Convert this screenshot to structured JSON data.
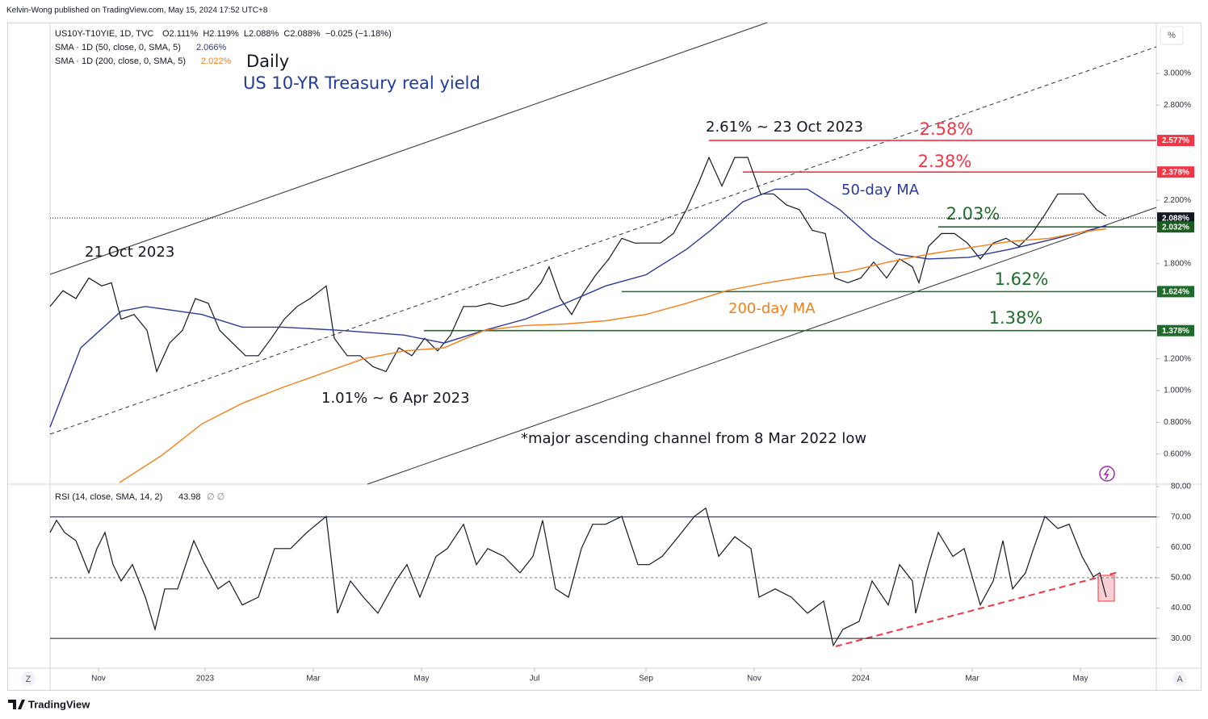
{
  "header": "Kelvin-Wong published on TradingView.com, May 15, 2024 17:52 UTC+8",
  "footer": "TradingView",
  "controls": {
    "scale_mode": "%",
    "zoom": "Z",
    "auto": "A"
  },
  "chart_data": [
    {
      "type": "line",
      "title": "Daily",
      "subtitle": "US 10-YR Treasury real yield",
      "ohlc_text": "O2.111%  H2.119%  L2.088%  C2.088%  −0.025 (−1.18%)",
      "xlim": [
        0,
        685
      ],
      "ylim": [
        0.41,
        3.32
      ],
      "grid": false,
      "yticks": [
        {
          "value": 0.6,
          "label": "0.600%"
        },
        {
          "value": 0.8,
          "label": "0.800%"
        },
        {
          "value": 1.0,
          "label": "1.000%"
        },
        {
          "value": 1.2,
          "label": "1.200%"
        },
        {
          "value": 1.8,
          "label": "1.800%"
        },
        {
          "value": 2.2,
          "label": "2.200%"
        },
        {
          "value": 2.8,
          "label": "2.800%"
        },
        {
          "value": 3.0,
          "label": "3.000%"
        }
      ],
      "series": [
        {
          "name": "US10Y-T10YIE, 1D, TVC",
          "color": "#131722",
          "x": [
            0,
            8,
            16,
            24,
            32,
            38,
            44,
            52,
            60,
            66,
            74,
            82,
            90,
            98,
            105,
            113,
            121,
            129,
            137,
            145,
            153,
            161,
            171,
            176,
            184,
            192,
            200,
            208,
            216,
            224,
            232,
            240,
            248,
            256,
            264,
            272,
            280,
            288,
            296,
            304,
            309,
            316,
            323,
            330,
            338,
            346,
            354,
            362,
            370,
            378,
            386,
            394,
            402,
            408,
            416,
            424,
            432,
            440,
            448,
            456,
            464,
            472,
            480,
            486,
            494,
            502,
            510,
            518,
            526,
            534,
            538,
            544,
            552,
            560,
            568,
            576,
            584,
            592,
            600,
            608,
            616,
            624,
            632,
            640,
            648,
            654
          ],
          "values": [
            1.53,
            1.63,
            1.58,
            1.71,
            1.66,
            1.68,
            1.45,
            1.48,
            1.38,
            1.12,
            1.3,
            1.38,
            1.58,
            1.55,
            1.38,
            1.3,
            1.22,
            1.22,
            1.33,
            1.45,
            1.53,
            1.58,
            1.66,
            1.33,
            1.22,
            1.22,
            1.15,
            1.12,
            1.27,
            1.22,
            1.33,
            1.25,
            1.35,
            1.53,
            1.53,
            1.55,
            1.53,
            1.55,
            1.58,
            1.68,
            1.78,
            1.58,
            1.48,
            1.61,
            1.73,
            1.83,
            1.96,
            1.93,
            1.93,
            1.93,
            1.99,
            2.14,
            2.32,
            2.47,
            2.29,
            2.47,
            2.47,
            2.24,
            2.24,
            2.17,
            2.14,
            2.01,
            1.99,
            1.71,
            1.68,
            1.71,
            1.81,
            1.71,
            1.83,
            1.78,
            1.68,
            1.91,
            1.99,
            1.99,
            1.93,
            1.83,
            1.93,
            1.96,
            1.91,
            1.99,
            2.11,
            2.24,
            2.24,
            2.24,
            2.14,
            2.1
          ]
        },
        {
          "name": "SMA · 1D (50, close, 0, SMA, 5)",
          "last_label": "2.066%",
          "color": "#2b3a97",
          "x": [
            0,
            19,
            44,
            59,
            94,
            119,
            144,
            179,
            219,
            244,
            269,
            294,
            319,
            344,
            369,
            394,
            409,
            429,
            449,
            469,
            489,
            509,
            524,
            544,
            569,
            594,
            619,
            639,
            654
          ],
          "values": [
            0.77,
            1.27,
            1.5,
            1.53,
            1.48,
            1.4,
            1.4,
            1.38,
            1.35,
            1.3,
            1.38,
            1.45,
            1.55,
            1.66,
            1.73,
            1.89,
            2.01,
            2.19,
            2.27,
            2.27,
            2.14,
            1.96,
            1.86,
            1.83,
            1.84,
            1.89,
            1.95,
            2.0,
            2.04
          ]
        },
        {
          "name": "SMA · 1D (200, close, 0, SMA, 5)",
          "last_label": "2.022%",
          "color": "#f57f17",
          "x": [
            43,
            69,
            94,
            119,
            144,
            169,
            194,
            219,
            244,
            269,
            294,
            319,
            344,
            369,
            394,
            419,
            444,
            469,
            494,
            519,
            544,
            569,
            594,
            619,
            639,
            654
          ],
          "values": [
            0.42,
            0.59,
            0.79,
            0.92,
            1.02,
            1.11,
            1.2,
            1.25,
            1.27,
            1.38,
            1.41,
            1.42,
            1.44,
            1.48,
            1.55,
            1.63,
            1.68,
            1.72,
            1.75,
            1.81,
            1.86,
            1.9,
            1.94,
            1.96,
            2.0,
            2.02
          ]
        }
      ],
      "levels": [
        {
          "value": 2.577,
          "label": "2.58%",
          "color": "#f23645"
        },
        {
          "value": 2.378,
          "label": "2.38%",
          "color": "#f23645"
        },
        {
          "value": 2.032,
          "label": "2.03%",
          "color": "#1e6b2a"
        },
        {
          "value": 1.624,
          "label": "1.62%",
          "color": "#1e6b2a"
        },
        {
          "value": 1.378,
          "label": "1.38%",
          "color": "#1e6b2a"
        }
      ],
      "axis_labels": [
        {
          "value": 2.577,
          "label": "2.577%",
          "color": "#f23645"
        },
        {
          "value": 2.378,
          "label": "2.378%",
          "color": "#f23645"
        },
        {
          "value": 2.088,
          "label": "2.088%",
          "color": "#131722",
          "line": "dotted"
        },
        {
          "value": 2.032,
          "label": "2.032%",
          "color": "#1b5e20"
        },
        {
          "value": 1.624,
          "label": "1.624%",
          "color": "#1e6b2a"
        },
        {
          "value": 1.378,
          "label": "1.378%",
          "color": "#1e6b2a"
        }
      ],
      "annotations": [
        {
          "text": "2.61% ~ 23 Oct 2023",
          "color": "#131722"
        },
        {
          "text": "21 Oct 2023",
          "color": "#131722"
        },
        {
          "text": "1.01% ~ 6 Apr 2023",
          "color": "#131722"
        },
        {
          "text": "*major ascending channel from 8 Mar 2022 low",
          "color": "#131722"
        },
        {
          "text": "50-day MA",
          "color": "#2b3a97"
        },
        {
          "text": "200-day MA",
          "color": "#f57f17"
        }
      ]
    },
    {
      "type": "line",
      "xlim": [
        0,
        685
      ],
      "ylim": [
        20.2,
        80.8
      ],
      "grid": false,
      "yticks": [
        {
          "value": 30,
          "label": "30.00"
        },
        {
          "value": 40,
          "label": "40.00"
        },
        {
          "value": 50,
          "label": "50.00"
        },
        {
          "value": 60,
          "label": "60.00"
        },
        {
          "value": 70,
          "label": "70.00"
        },
        {
          "value": 80,
          "label": "80.00"
        }
      ],
      "xticks": [
        {
          "value": 30,
          "label": "Nov"
        },
        {
          "value": 96,
          "label": "2023"
        },
        {
          "value": 163,
          "label": "Mar"
        },
        {
          "value": 230,
          "label": "May"
        },
        {
          "value": 300,
          "label": "Jul"
        },
        {
          "value": 369,
          "label": "Sep"
        },
        {
          "value": 436,
          "label": "Nov"
        },
        {
          "value": 502,
          "label": "2024"
        },
        {
          "value": 571,
          "label": "Mar"
        },
        {
          "value": 638,
          "label": "May"
        }
      ],
      "hlines": [
        {
          "value": 70,
          "style": "solid"
        },
        {
          "value": 50,
          "style": "dashed"
        },
        {
          "value": 30,
          "style": "solid"
        }
      ],
      "series": [
        {
          "name": "RSI (14, close, SMA, 14, 2)",
          "last_label": "43.98",
          "extra_label": "∅ ∅",
          "color": "#131722",
          "x": [
            0,
            4,
            9,
            16,
            24,
            29,
            34,
            39,
            44,
            51,
            59,
            65,
            71,
            79,
            89,
            95,
            104,
            111,
            119,
            129,
            139,
            149,
            159,
            171,
            178,
            186,
            194,
            203,
            214,
            221,
            229,
            239,
            246,
            256,
            264,
            271,
            281,
            291,
            299,
            305,
            313,
            321,
            329,
            336,
            344,
            354,
            364,
            371,
            379,
            389,
            399,
            406,
            414,
            424,
            434,
            439,
            449,
            459,
            469,
            479,
            485,
            491,
            501,
            509,
            519,
            526,
            534,
            536,
            544,
            550,
            559,
            566,
            576,
            584,
            590,
            596,
            604,
            609,
            616,
            624,
            631,
            639,
            646,
            650,
            654
          ],
          "values": [
            64.9,
            68.9,
            64.9,
            62.2,
            51.6,
            59.6,
            64.9,
            54.3,
            48.9,
            54.3,
            43.6,
            33.0,
            46.3,
            46.3,
            62.2,
            55.3,
            46.3,
            48.9,
            41.0,
            43.6,
            59.6,
            59.6,
            64.9,
            70.2,
            38.3,
            48.9,
            43.6,
            38.3,
            48.9,
            54.3,
            43.6,
            57.0,
            59.6,
            67.6,
            54.3,
            59.6,
            57.0,
            51.6,
            57.0,
            68.9,
            46.3,
            43.6,
            59.6,
            67.6,
            67.6,
            70.2,
            54.3,
            54.3,
            57.0,
            63.5,
            70.2,
            72.9,
            57.0,
            63.5,
            59.6,
            43.6,
            46.3,
            43.6,
            38.3,
            42.3,
            27.7,
            33.0,
            35.6,
            48.9,
            41.0,
            54.3,
            48.9,
            38.3,
            54.3,
            64.9,
            57.0,
            59.6,
            41.0,
            48.9,
            62.2,
            46.3,
            51.6,
            59.6,
            70.2,
            66.2,
            67.6,
            57.0,
            50.3,
            51.6,
            43.6
          ]
        }
      ]
    }
  ]
}
